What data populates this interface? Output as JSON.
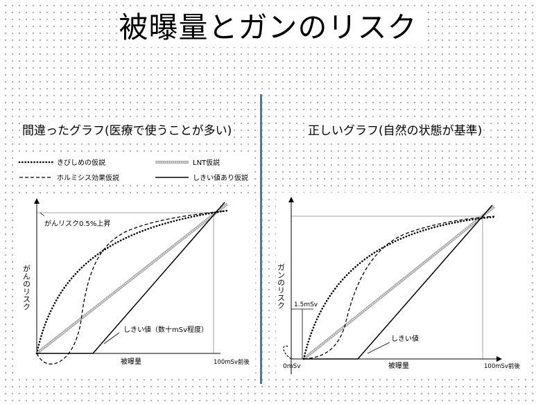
{
  "title": "被曝量とガンのリスク",
  "left_panel": {
    "subtitle": "間違ったグラフ(医療で使うことが多い)",
    "legend": {
      "dotted": "きびしめの仮説",
      "lnt": "LNT仮説",
      "dashed": "ホルミシス効果仮説",
      "solid": "しきい値あり仮説"
    },
    "annotation_top": "がんリスク0.5%上昇",
    "y_label": "がんのリスク",
    "x_label": "被曝量",
    "x_end": "100mSv前後",
    "threshold_note": "しきい値（数十mSv程度）"
  },
  "right_panel": {
    "subtitle": "正しいグラフ(自然の状態が基準)",
    "y_label": "ガンのリスク",
    "y_mark": "1.5mSv",
    "x_start": "0mSv",
    "x_label": "被曝量",
    "x_end": "100mSv前後",
    "threshold_note": "しきい値"
  },
  "colors": {
    "divider": "#4a76b8",
    "lnt": "#a8a8a8",
    "line": "#000000"
  }
}
